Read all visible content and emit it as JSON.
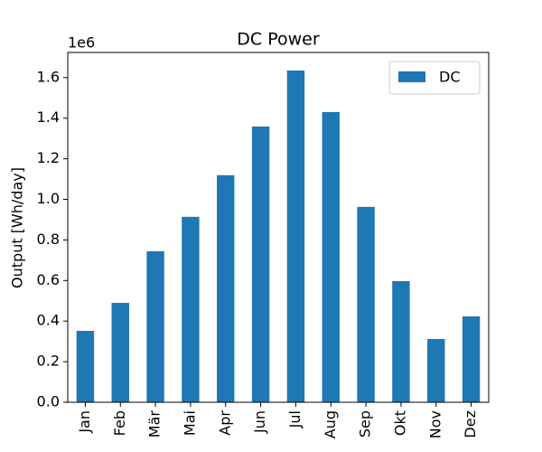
{
  "chart_data": {
    "type": "bar",
    "title": "DC Power",
    "ylabel": "Output [Wh/day]",
    "offset_label": "1e6",
    "categories": [
      "Jan",
      "Feb",
      "Mär",
      "Mai",
      "Apr",
      "Jun",
      "Jul",
      "Aug",
      "Sep",
      "Okt",
      "Nov",
      "Dez"
    ],
    "series": [
      {
        "name": "DC",
        "color": "#1f77b4",
        "values": [
          352000,
          490000,
          744000,
          914000,
          1119000,
          1359000,
          1635000,
          1430000,
          963000,
          597000,
          312000,
          423000
        ]
      }
    ],
    "ylim": [
      0,
      1724000
    ],
    "yticks": [
      {
        "value": 0,
        "label": "0.0"
      },
      {
        "value": 200000,
        "label": "0.2"
      },
      {
        "value": 400000,
        "label": "0.4"
      },
      {
        "value": 600000,
        "label": "0.6"
      },
      {
        "value": 800000,
        "label": "0.8"
      },
      {
        "value": 1000000,
        "label": "1.0"
      },
      {
        "value": 1200000,
        "label": "1.2"
      },
      {
        "value": 1400000,
        "label": "1.4"
      },
      {
        "value": 1600000,
        "label": "1.6"
      }
    ],
    "legend": "upper right",
    "grid": false
  }
}
